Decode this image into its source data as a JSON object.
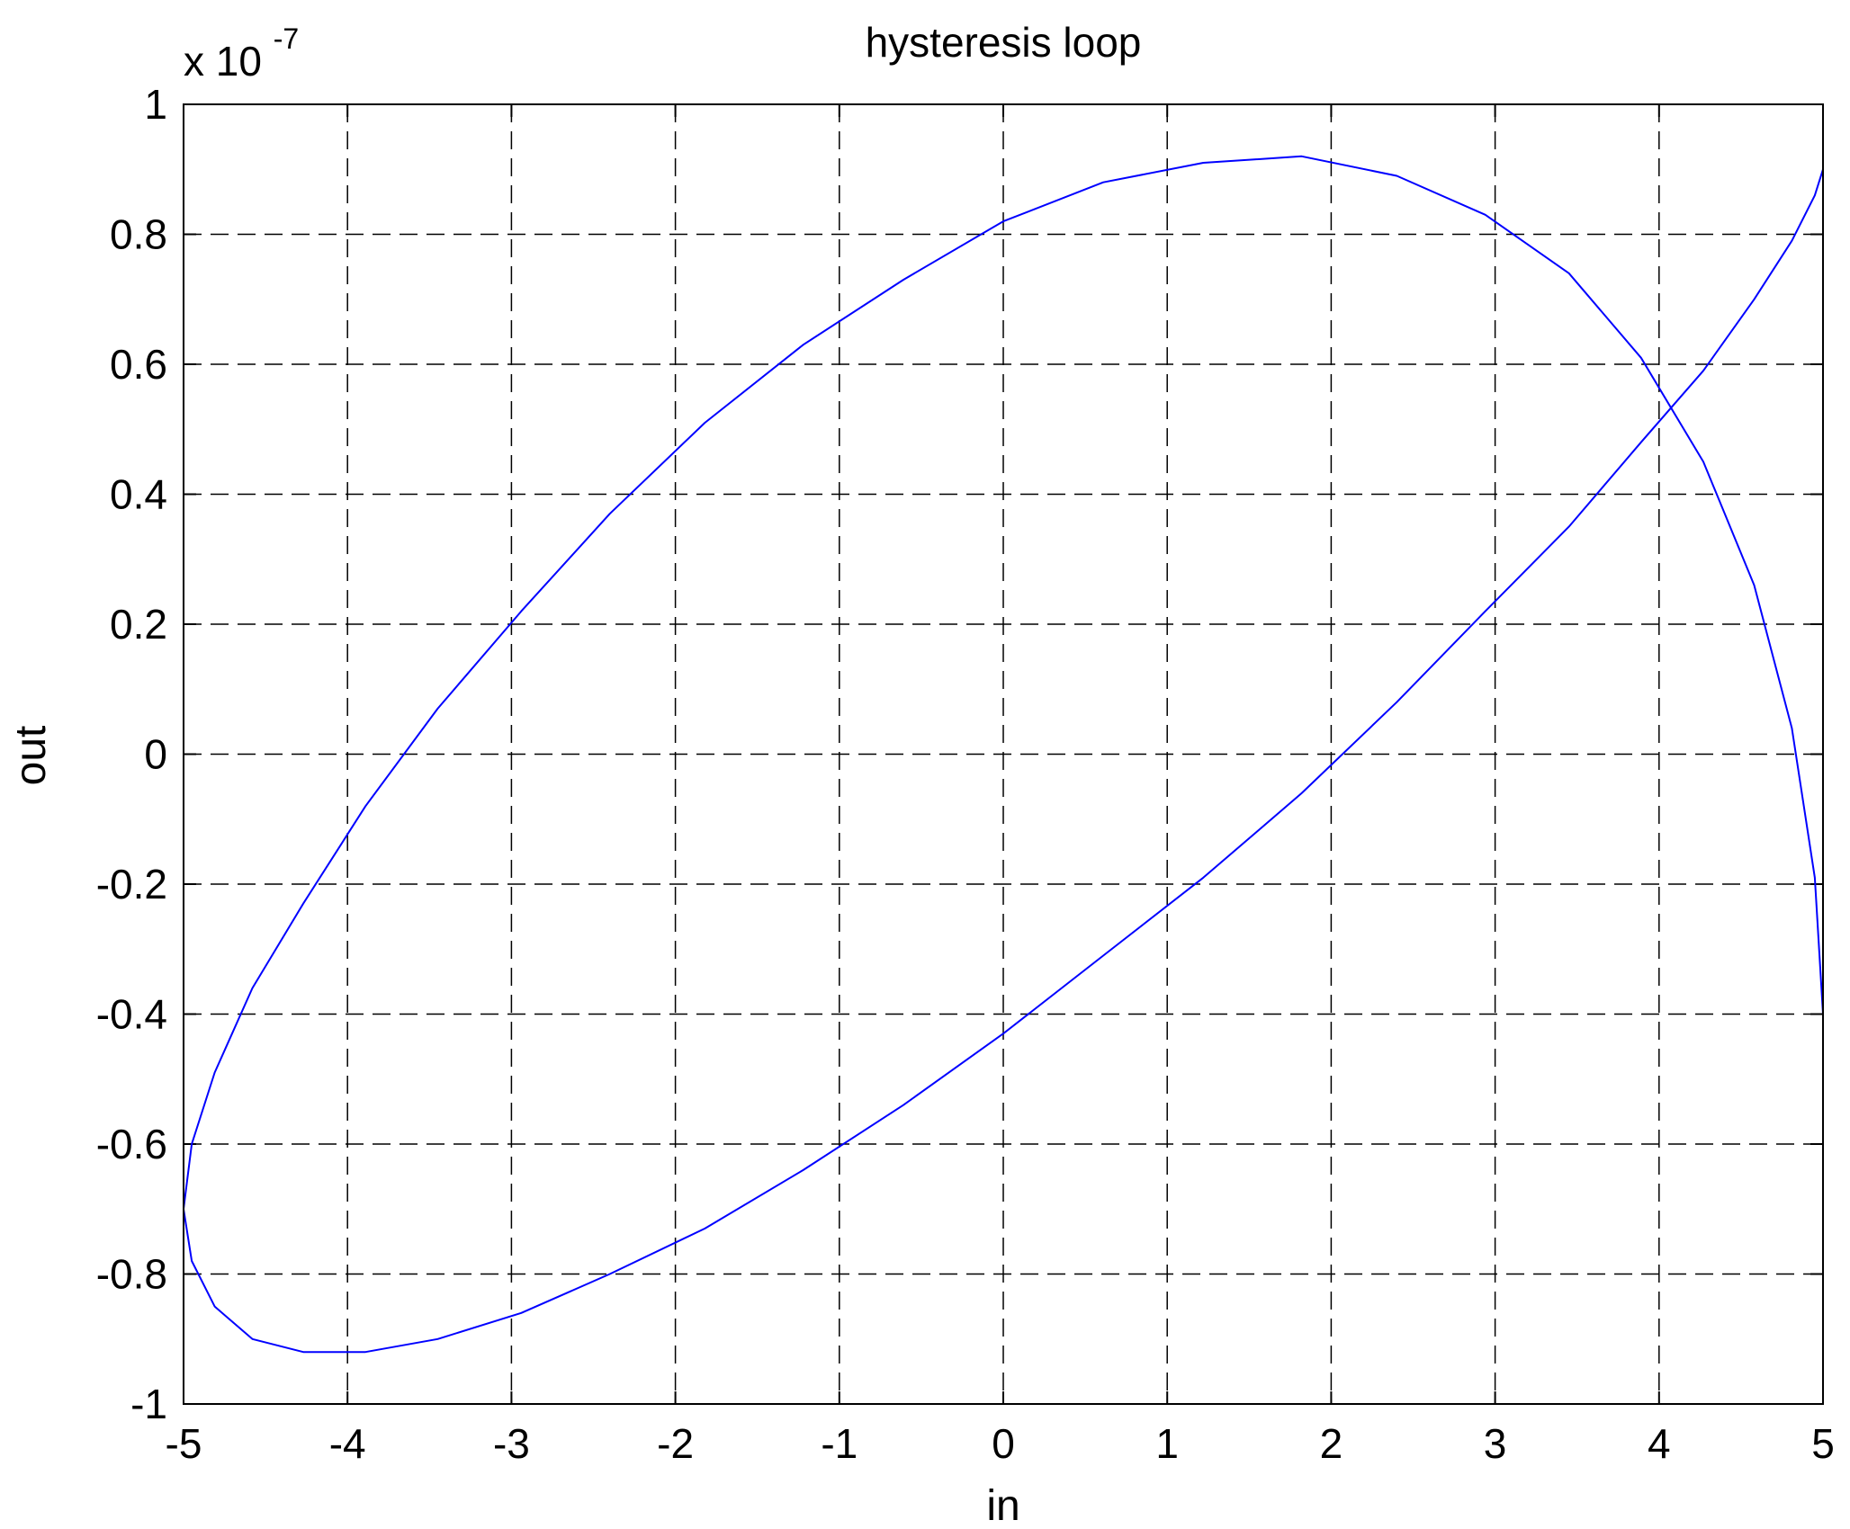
{
  "chart_data": {
    "type": "line",
    "title": "hysteresis loop",
    "xlabel": "in",
    "ylabel": "out",
    "y_multiplier": {
      "base": "x 10",
      "exponent": "-7"
    },
    "xlim": [
      -5,
      5
    ],
    "ylim": [
      -1,
      1
    ],
    "xticks": [
      -5,
      -4,
      -3,
      -2,
      -1,
      0,
      1,
      2,
      3,
      4,
      5
    ],
    "xtick_labels": [
      "-5",
      "-4",
      "-3",
      "-2",
      "-1",
      "0",
      "1",
      "2",
      "3",
      "4",
      "5"
    ],
    "yticks": [
      -1,
      -0.8,
      -0.6,
      -0.4,
      -0.2,
      0,
      0.2,
      0.4,
      0.6,
      0.8,
      1
    ],
    "ytick_labels": [
      "-1",
      "-0.8",
      "-0.6",
      "-0.4",
      "-0.2",
      "0",
      "0.2",
      "0.4",
      "0.6",
      "0.8",
      "1"
    ],
    "grid": true,
    "grid_style": "dashed",
    "series": [
      {
        "color": "#0000ff",
        "x": [
          5,
          4.95,
          4.81,
          4.58,
          4.27,
          3.89,
          3.45,
          2.94,
          2.4,
          1.82,
          1.22,
          0.61,
          0,
          -0.61,
          -1.22,
          -1.82,
          -2.4,
          -2.94,
          -3.45,
          -3.89,
          -4.27,
          -4.58,
          -4.81,
          -4.95,
          -5,
          -4.95,
          -4.81,
          -4.58,
          -4.27,
          -3.89,
          -3.45,
          -2.94,
          -2.4,
          -1.82,
          -1.22,
          -0.61,
          0,
          0.61,
          1.22,
          1.82,
          2.4,
          2.94,
          3.45,
          3.89,
          4.27,
          4.58,
          4.81,
          4.95,
          5
        ],
        "y": [
          -0.4,
          -0.19,
          0.04,
          0.26,
          0.45,
          0.61,
          0.74,
          0.83,
          0.89,
          0.92,
          0.91,
          0.88,
          0.82,
          0.73,
          0.63,
          0.51,
          0.37,
          0.22,
          0.07,
          -0.08,
          -0.23,
          -0.36,
          -0.49,
          -0.6,
          -0.7,
          -0.78,
          -0.85,
          -0.9,
          -0.92,
          -0.92,
          -0.9,
          -0.86,
          -0.8,
          -0.73,
          -0.64,
          -0.54,
          -0.43,
          -0.31,
          -0.19,
          -0.06,
          0.08,
          0.22,
          0.35,
          0.48,
          0.59,
          0.7,
          0.79,
          0.86,
          0.9
        ]
      }
    ]
  }
}
